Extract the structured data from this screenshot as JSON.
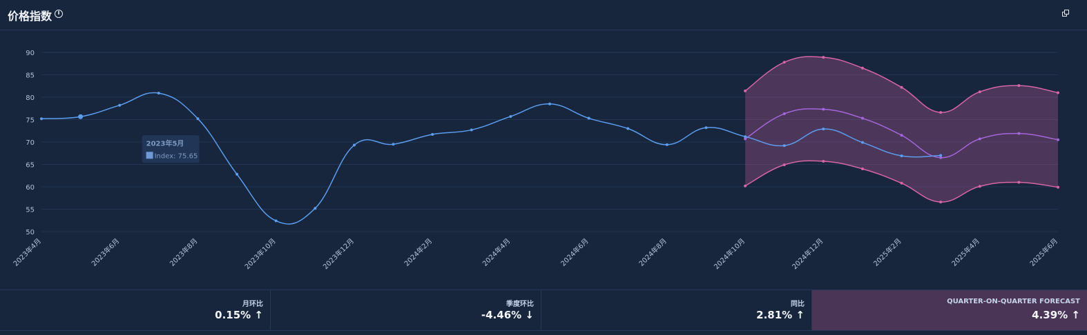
{
  "header": {
    "title": "价格指数",
    "info_icon": "info-icon",
    "expand_icon": "expand-icon"
  },
  "chart_data": {
    "type": "line",
    "x": [
      "2023年4月",
      "2023年5月",
      "2023年6月",
      "2023年7月",
      "2023年8月",
      "2023年9月",
      "2023年10月",
      "2023年11月",
      "2023年12月",
      "2024年1月",
      "2024年2月",
      "2024年3月",
      "2024年4月",
      "2024年5月",
      "2024年6月",
      "2024年7月",
      "2024年8月",
      "2024年9月",
      "2024年10月",
      "2024年11月",
      "2024年12月",
      "2025年1月",
      "2025年2月",
      "2025年3月",
      "2025年4月",
      "2025年5月",
      "2025年6月"
    ],
    "x_tick_labels": [
      "2023年4月",
      "2023年6月",
      "2023年8月",
      "2023年10月",
      "2023年12月",
      "2024年2月",
      "2024年4月",
      "2024年6月",
      "2024年8月",
      "2024年10月",
      "2024年12月",
      "2025年2月",
      "2025年4月",
      "2025年6月"
    ],
    "ylim": [
      50,
      90
    ],
    "y_ticks": [
      50,
      55,
      60,
      65,
      70,
      75,
      80,
      85,
      90
    ],
    "grid": true,
    "series": [
      {
        "name": "Index",
        "color": "#5b9ef0",
        "values": [
          75.2,
          75.65,
          78.2,
          80.9,
          75.2,
          62.8,
          52.4,
          55.2,
          69.3,
          69.5,
          71.7,
          72.7,
          75.7,
          78.5,
          75.3,
          73.0,
          69.4,
          73.2,
          71.2,
          69.2,
          72.9,
          69.9,
          66.9,
          67.0,
          null,
          null,
          null
        ]
      },
      {
        "color": "#a466dc",
        "values": [
          null,
          null,
          null,
          null,
          null,
          null,
          null,
          null,
          null,
          null,
          null,
          null,
          null,
          null,
          null,
          null,
          null,
          null,
          70.7,
          76.3,
          77.3,
          75.3,
          71.5,
          66.5,
          70.7,
          71.9,
          70.5
        ]
      },
      {
        "color": "#d865a6",
        "fill_band": true,
        "upper": [
          null,
          null,
          null,
          null,
          null,
          null,
          null,
          null,
          null,
          null,
          null,
          null,
          null,
          null,
          null,
          null,
          null,
          null,
          81.4,
          87.8,
          88.9,
          86.5,
          82.2,
          76.6,
          81.2,
          82.6,
          81.0
        ],
        "lower": [
          null,
          null,
          null,
          null,
          null,
          null,
          null,
          null,
          null,
          null,
          null,
          null,
          null,
          null,
          null,
          null,
          null,
          null,
          60.2,
          64.9,
          65.7,
          64.0,
          60.8,
          56.6,
          60.1,
          61.0,
          59.9
        ]
      }
    ],
    "tooltip": {
      "title": "2023年5月",
      "label": "Index: 75.65"
    }
  },
  "kpis": [
    {
      "label": "月环比",
      "value": "0.15%",
      "arrow": "↑"
    },
    {
      "label": "季度环比",
      "value": "-4.46%",
      "arrow": "↓"
    },
    {
      "label": "同比",
      "value": "2.81%",
      "arrow": "↑"
    },
    {
      "label": "QUARTER-ON-QUARTER FORECAST",
      "value": "4.39%",
      "arrow": "↑"
    }
  ]
}
